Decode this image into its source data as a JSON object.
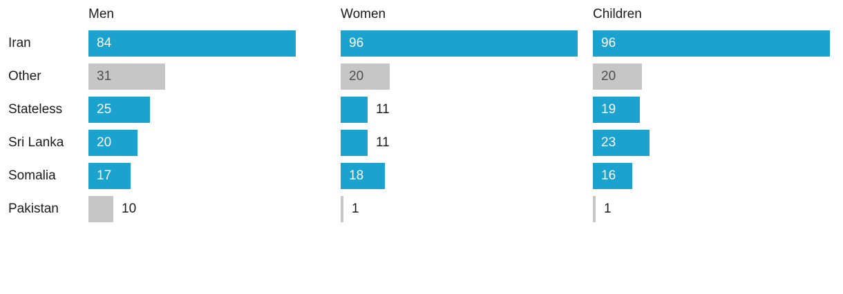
{
  "chart_data": {
    "type": "bar",
    "orientation": "horizontal",
    "title": "",
    "categories": [
      "Iran",
      "Other",
      "Stateless",
      "Sri Lanka",
      "Somalia",
      "Pakistan"
    ],
    "series": [
      {
        "name": "Men",
        "values": [
          84,
          31,
          25,
          20,
          17,
          10
        ]
      },
      {
        "name": "Women",
        "values": [
          96,
          20,
          11,
          11,
          18,
          1
        ]
      },
      {
        "name": "Children",
        "values": [
          96,
          20,
          19,
          23,
          16,
          1
        ]
      }
    ],
    "xlim": [
      0,
      96
    ],
    "grid": false,
    "legend_position": "column-headers",
    "gray_categories": [
      "Other",
      "Pakistan"
    ],
    "colors": {
      "bar": "#1CA2CE",
      "bar_muted": "#C6C6C6",
      "label_inside_bar": "#FFFFFF",
      "label_inside_muted_bar": "#4D4D4D",
      "label_outside": "#1A1A1A",
      "text": "#1A1A1A",
      "background": "#FFFFFF"
    }
  }
}
